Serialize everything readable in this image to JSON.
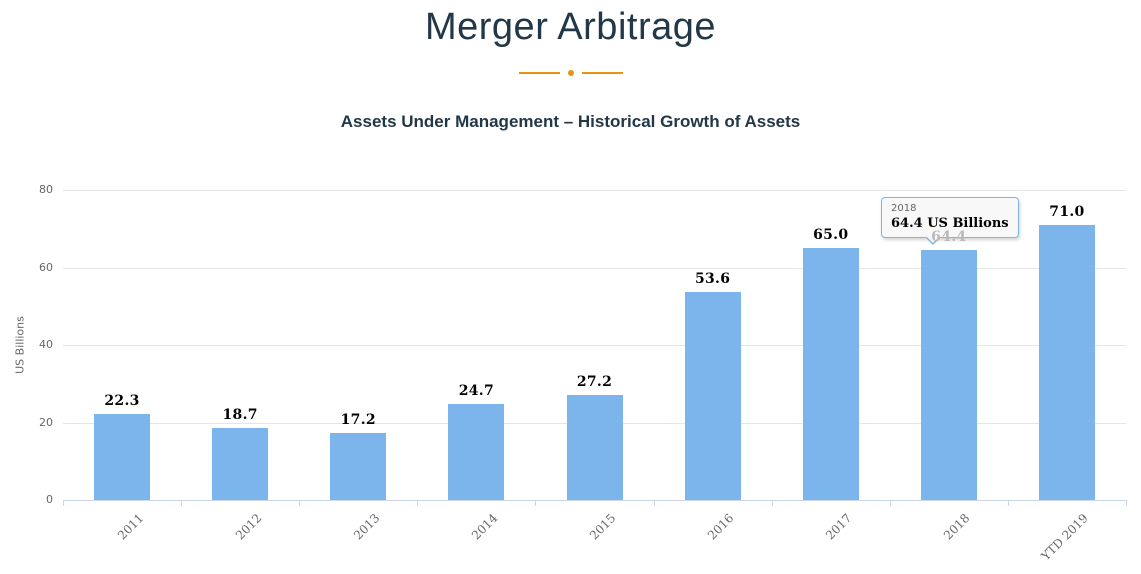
{
  "header": {
    "title": "Merger Arbitrage",
    "subtitle": "Assets Under Management – Historical Growth of Assets"
  },
  "chart_data": {
    "type": "bar",
    "title": "Merger Arbitrage",
    "subtitle": "Assets Under Management – Historical Growth of Assets",
    "categories": [
      "2011",
      "2012",
      "2013",
      "2014",
      "2015",
      "2016",
      "2017",
      "2018",
      "YTD 2019"
    ],
    "values": [
      22.3,
      18.7,
      17.2,
      24.7,
      27.2,
      53.6,
      65.0,
      64.4,
      71.0
    ],
    "data_labels": [
      "22.3",
      "18.7",
      "17.2",
      "24.7",
      "27.2",
      "53.6",
      "65.0",
      "64.4",
      "71.0"
    ],
    "xlabel": "",
    "ylabel": "US Billions",
    "ylim": [
      0,
      80
    ],
    "yticks": [
      0,
      20,
      40,
      60,
      80
    ],
    "grid": true,
    "legend": "none",
    "bar_color": "#7cb5ec",
    "hovered_category_index": 7,
    "tooltip": {
      "category": "2018",
      "value_text": "64.4 US Billions"
    }
  },
  "colors": {
    "heading": "#223747",
    "accent_orange": "#e8940f",
    "bar": "#7cb5ec",
    "gridline": "#e6e6e6",
    "axis_line": "#ccd6eb",
    "axis_label": "#666666",
    "data_label": "#000000",
    "dimmed_data_label": "#b9b9b9",
    "tooltip_border": "#7cb5ec",
    "tooltip_background": "#f7f7f7"
  }
}
